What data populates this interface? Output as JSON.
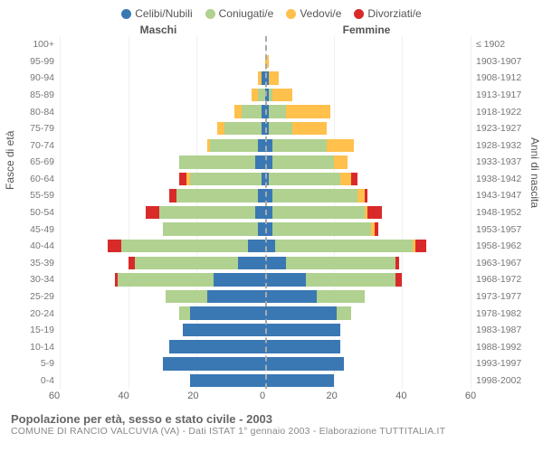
{
  "chart": {
    "type": "population-pyramid",
    "title": "Popolazione per età, sesso e stato civile - 2003",
    "subtitle": "COMUNE DI RANCIO VALCUVIA (VA) - Dati ISTAT 1° gennaio 2003 - Elaborazione TUTTITALIA.IT",
    "legend": [
      {
        "label": "Celibi/Nubili",
        "color": "#3a78b4"
      },
      {
        "label": "Coniugati/e",
        "color": "#b0d18f"
      },
      {
        "label": "Vedovi/e",
        "color": "#ffc04c"
      },
      {
        "label": "Divorziati/e",
        "color": "#d92a2a"
      }
    ],
    "side_titles": {
      "left": "Maschi",
      "right": "Femmine"
    },
    "y_label_left": "Fasce di età",
    "y_label_right": "Anni di nascita",
    "x_axis": {
      "min": -60,
      "max": 60,
      "ticks": [
        -60,
        -40,
        -20,
        0,
        20,
        40,
        60
      ],
      "labels": [
        "60",
        "40",
        "20",
        "0",
        "20",
        "40",
        "60"
      ]
    },
    "background_color": "#ffffff",
    "grid_color": "#e0e0e0",
    "axis_font_size": 11,
    "label_font_size": 12,
    "title_font_size": 13,
    "age_groups": [
      "100+",
      "95-99",
      "90-94",
      "85-89",
      "80-84",
      "75-79",
      "70-74",
      "65-69",
      "60-64",
      "55-59",
      "50-54",
      "45-49",
      "40-44",
      "35-39",
      "30-34",
      "25-29",
      "20-24",
      "15-19",
      "10-14",
      "5-9",
      "0-4"
    ],
    "birth_years": [
      "≤ 1902",
      "1903-1907",
      "1908-1912",
      "1913-1917",
      "1918-1922",
      "1923-1927",
      "1928-1932",
      "1933-1937",
      "1938-1942",
      "1943-1947",
      "1948-1952",
      "1953-1957",
      "1958-1962",
      "1963-1967",
      "1968-1972",
      "1973-1977",
      "1978-1982",
      "1983-1987",
      "1988-1992",
      "1993-1997",
      "1998-2002"
    ],
    "male": [
      {
        "c": 0,
        "m": 0,
        "w": 0,
        "d": 0
      },
      {
        "c": 0,
        "m": 0,
        "w": 0,
        "d": 0
      },
      {
        "c": 1,
        "m": 0,
        "w": 1,
        "d": 0
      },
      {
        "c": 0,
        "m": 2,
        "w": 2,
        "d": 0
      },
      {
        "c": 1,
        "m": 6,
        "w": 2,
        "d": 0
      },
      {
        "c": 1,
        "m": 11,
        "w": 2,
        "d": 0
      },
      {
        "c": 2,
        "m": 14,
        "w": 1,
        "d": 0
      },
      {
        "c": 3,
        "m": 22,
        "w": 0,
        "d": 0
      },
      {
        "c": 1,
        "m": 21,
        "w": 1,
        "d": 2
      },
      {
        "c": 2,
        "m": 24,
        "w": 0,
        "d": 2
      },
      {
        "c": 3,
        "m": 28,
        "w": 0,
        "d": 4
      },
      {
        "c": 2,
        "m": 28,
        "w": 0,
        "d": 0
      },
      {
        "c": 5,
        "m": 37,
        "w": 0,
        "d": 4
      },
      {
        "c": 8,
        "m": 30,
        "w": 0,
        "d": 2
      },
      {
        "c": 15,
        "m": 28,
        "w": 0,
        "d": 1
      },
      {
        "c": 17,
        "m": 12,
        "w": 0,
        "d": 0
      },
      {
        "c": 22,
        "m": 3,
        "w": 0,
        "d": 0
      },
      {
        "c": 24,
        "m": 0,
        "w": 0,
        "d": 0
      },
      {
        "c": 28,
        "m": 0,
        "w": 0,
        "d": 0
      },
      {
        "c": 30,
        "m": 0,
        "w": 0,
        "d": 0
      },
      {
        "c": 22,
        "m": 0,
        "w": 0,
        "d": 0
      }
    ],
    "female": [
      {
        "c": 0,
        "m": 0,
        "w": 0,
        "d": 0
      },
      {
        "c": 0,
        "m": 0,
        "w": 1,
        "d": 0
      },
      {
        "c": 1,
        "m": 0,
        "w": 3,
        "d": 0
      },
      {
        "c": 1,
        "m": 1,
        "w": 6,
        "d": 0
      },
      {
        "c": 1,
        "m": 5,
        "w": 13,
        "d": 0
      },
      {
        "c": 1,
        "m": 7,
        "w": 10,
        "d": 0
      },
      {
        "c": 2,
        "m": 16,
        "w": 8,
        "d": 0
      },
      {
        "c": 2,
        "m": 18,
        "w": 4,
        "d": 0
      },
      {
        "c": 1,
        "m": 21,
        "w": 3,
        "d": 2
      },
      {
        "c": 2,
        "m": 25,
        "w": 2,
        "d": 1
      },
      {
        "c": 2,
        "m": 27,
        "w": 1,
        "d": 4
      },
      {
        "c": 2,
        "m": 29,
        "w": 1,
        "d": 1
      },
      {
        "c": 3,
        "m": 40,
        "w": 1,
        "d": 3
      },
      {
        "c": 6,
        "m": 32,
        "w": 0,
        "d": 1
      },
      {
        "c": 12,
        "m": 26,
        "w": 0,
        "d": 2
      },
      {
        "c": 15,
        "m": 14,
        "w": 0,
        "d": 0
      },
      {
        "c": 21,
        "m": 4,
        "w": 0,
        "d": 0
      },
      {
        "c": 22,
        "m": 0,
        "w": 0,
        "d": 0
      },
      {
        "c": 22,
        "m": 0,
        "w": 0,
        "d": 0
      },
      {
        "c": 23,
        "m": 0,
        "w": 0,
        "d": 0
      },
      {
        "c": 20,
        "m": 0,
        "w": 0,
        "d": 0
      }
    ]
  }
}
